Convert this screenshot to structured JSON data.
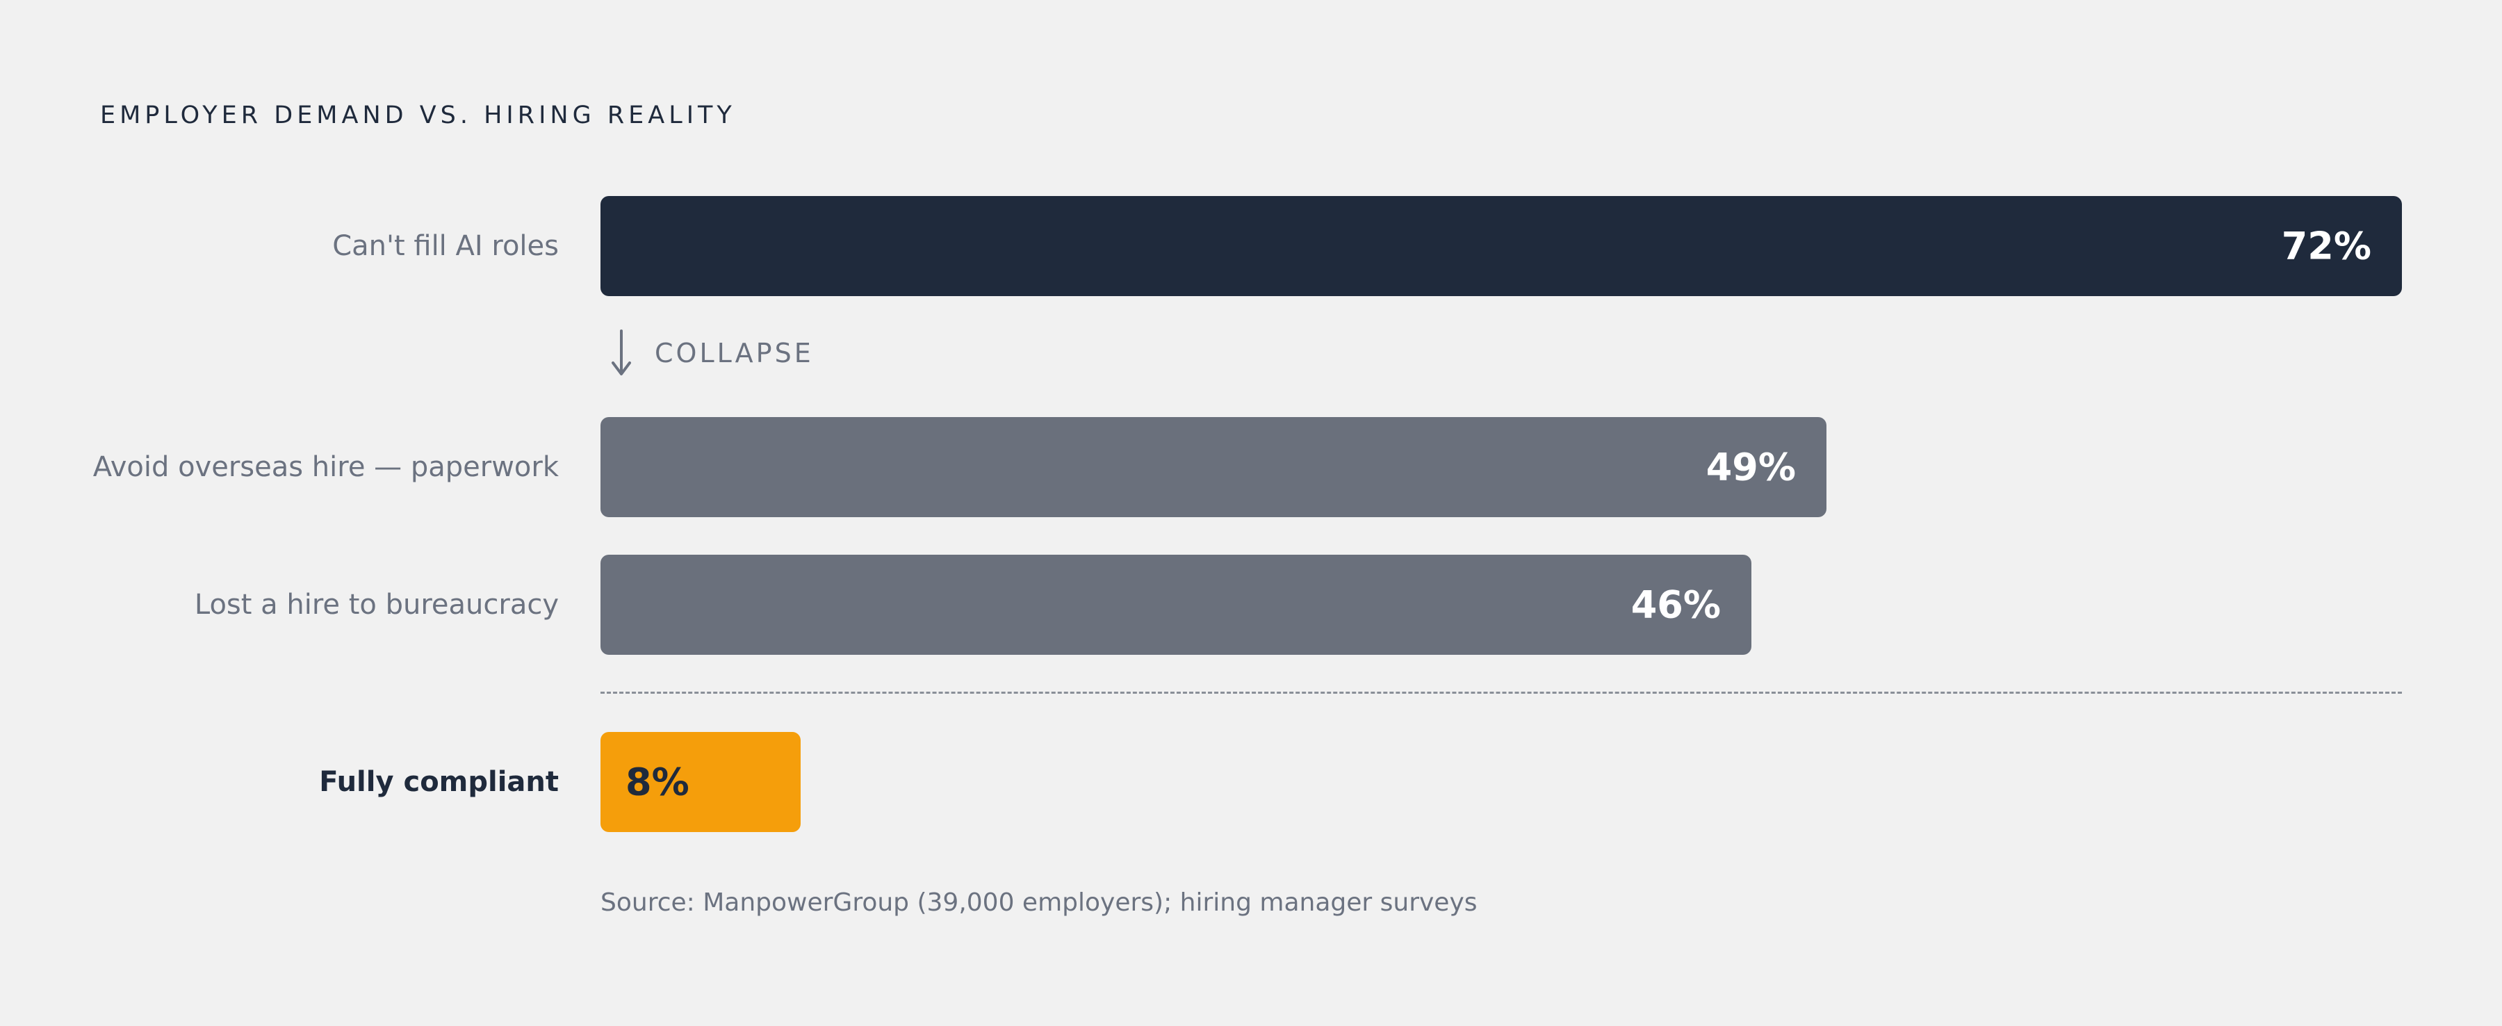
{
  "chart_data": {
    "type": "bar",
    "orientation": "horizontal",
    "title": "EMPLOYER DEMAND VS. HIRING REALITY",
    "unit": "%",
    "xlim": [
      0,
      72
    ],
    "categories": [
      "Can't fill AI roles",
      "Avoid overseas hire — paperwork",
      "Lost a hire to bureaucracy",
      "Fully compliant"
    ],
    "values": [
      72,
      49,
      46,
      8
    ],
    "value_labels": [
      "72%",
      "49%",
      "46%",
      "8%"
    ],
    "bar_colors": [
      "#1f2a3c",
      "#6a707c",
      "#6a707c",
      "#f59e0b"
    ],
    "value_label_colors": [
      "#ffffff",
      "#ffffff",
      "#ffffff",
      "#1f2a3c"
    ],
    "emphasized_category": "Fully compliant",
    "annotation": "COLLAPSE",
    "annotation_icon": "arrow-down-icon",
    "source": "Source: ManpowerGroup (39,000 employers); hiring manager surveys"
  },
  "colors": {
    "background": "#f1f1f1",
    "primary": "#1f2a3c",
    "muted": "#6a707c",
    "accent": "#f59e0b"
  }
}
